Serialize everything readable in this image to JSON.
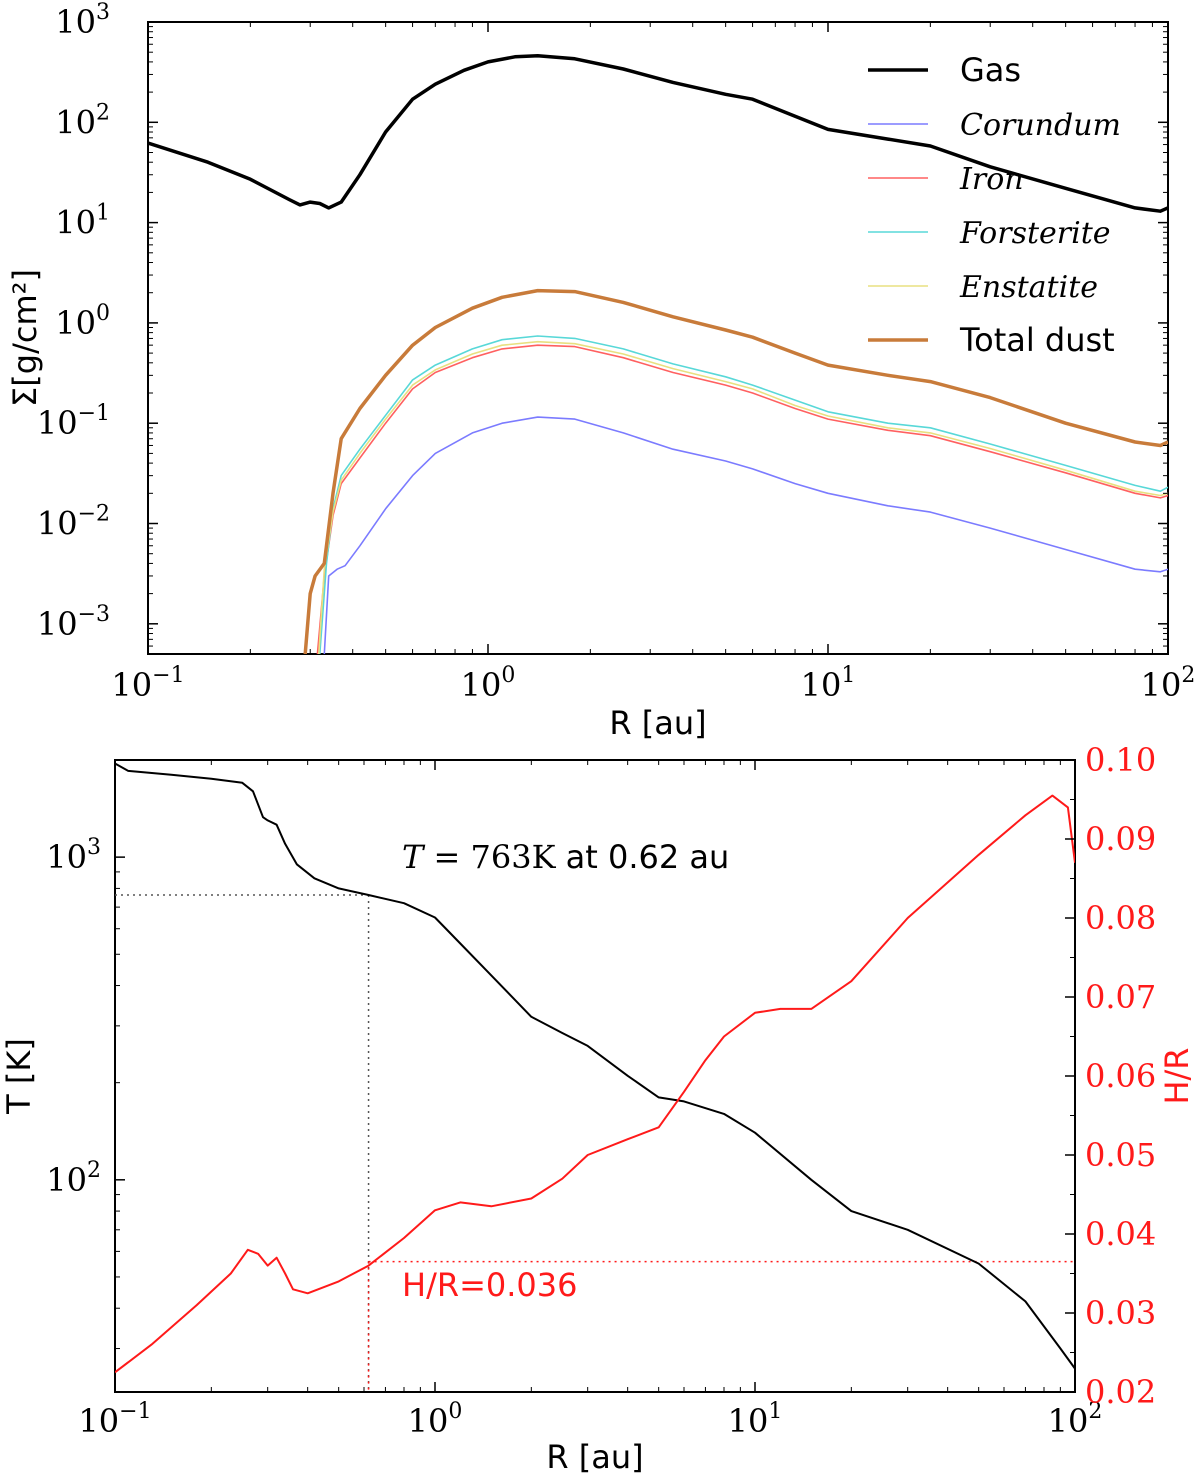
{
  "chart_data": [
    {
      "type": "line",
      "xscale": "log",
      "yscale": "log",
      "xlabel": "R [au]",
      "ylabel": "Σ[g/cm²]",
      "xlim": [
        0.1,
        100
      ],
      "ylim": [
        0.0005,
        1000
      ],
      "x_ticks": [
        {
          "value": 0.1,
          "base": "10",
          "exp": "−1"
        },
        {
          "value": 1,
          "base": "10",
          "exp": "0"
        },
        {
          "value": 10,
          "base": "10",
          "exp": "1"
        },
        {
          "value": 100,
          "base": "10",
          "exp": "2"
        }
      ],
      "y_ticks": [
        {
          "value": 0.001,
          "base": "10",
          "exp": "−3"
        },
        {
          "value": 0.01,
          "base": "10",
          "exp": "−2"
        },
        {
          "value": 0.1,
          "base": "10",
          "exp": "−1"
        },
        {
          "value": 1,
          "base": "10",
          "exp": "0"
        },
        {
          "value": 10,
          "base": "10",
          "exp": "1"
        },
        {
          "value": 100,
          "base": "10",
          "exp": "2"
        },
        {
          "value": 1000,
          "base": "10",
          "exp": "3"
        }
      ],
      "series": [
        {
          "name": "Gas",
          "style": "normal",
          "color": "#000000",
          "width": 3.5,
          "x": [
            0.1,
            0.15,
            0.2,
            0.26,
            0.28,
            0.3,
            0.32,
            0.34,
            0.37,
            0.42,
            0.5,
            0.6,
            0.7,
            0.85,
            1.0,
            1.2,
            1.4,
            1.8,
            2.5,
            3.5,
            5.0,
            6.0,
            8.0,
            10,
            15,
            20,
            30,
            50,
            80,
            95,
            100
          ],
          "y": [
            62,
            40,
            27,
            17,
            15,
            16,
            15.5,
            14,
            16,
            30,
            80,
            170,
            240,
            330,
            400,
            450,
            460,
            430,
            340,
            250,
            190,
            170,
            115,
            85,
            68,
            58,
            36,
            22,
            14,
            13,
            14
          ]
        },
        {
          "name": "Corundum",
          "style": "italic",
          "color": "#7b7bff",
          "width": 1.6,
          "x": [
            0.33,
            0.34,
            0.36,
            0.38,
            0.42,
            0.5,
            0.6,
            0.7,
            0.9,
            1.1,
            1.4,
            1.8,
            2.5,
            3.5,
            5,
            6,
            8,
            10,
            15,
            20,
            30,
            50,
            80,
            95,
            100
          ],
          "y": [
            0.0005,
            0.003,
            0.0035,
            0.0038,
            0.006,
            0.014,
            0.03,
            0.05,
            0.08,
            0.1,
            0.115,
            0.11,
            0.08,
            0.055,
            0.042,
            0.035,
            0.025,
            0.02,
            0.015,
            0.013,
            0.009,
            0.0055,
            0.0035,
            0.0033,
            0.0035
          ]
        },
        {
          "name": "Iron",
          "style": "italic",
          "color": "#ff6060",
          "width": 1.6,
          "x": [
            0.315,
            0.33,
            0.35,
            0.37,
            0.42,
            0.5,
            0.6,
            0.7,
            0.9,
            1.1,
            1.4,
            1.8,
            2.5,
            3.5,
            5,
            6,
            8,
            10,
            15,
            20,
            30,
            50,
            80,
            95,
            100
          ],
          "y": [
            0.0005,
            0.003,
            0.012,
            0.025,
            0.045,
            0.1,
            0.22,
            0.32,
            0.45,
            0.55,
            0.6,
            0.58,
            0.45,
            0.32,
            0.24,
            0.2,
            0.14,
            0.11,
            0.085,
            0.075,
            0.052,
            0.032,
            0.02,
            0.018,
            0.019
          ]
        },
        {
          "name": "Forsterite",
          "style": "italic",
          "color": "#58d8d8",
          "width": 1.6,
          "x": [
            0.32,
            0.335,
            0.35,
            0.37,
            0.42,
            0.5,
            0.6,
            0.7,
            0.9,
            1.1,
            1.4,
            1.8,
            2.5,
            3.5,
            5,
            6,
            8,
            10,
            15,
            20,
            30,
            50,
            80,
            95,
            100
          ],
          "y": [
            0.0005,
            0.004,
            0.014,
            0.03,
            0.055,
            0.12,
            0.27,
            0.38,
            0.55,
            0.68,
            0.74,
            0.7,
            0.55,
            0.39,
            0.29,
            0.24,
            0.17,
            0.13,
            0.1,
            0.09,
            0.062,
            0.038,
            0.024,
            0.021,
            0.023
          ]
        },
        {
          "name": "Enstatite",
          "style": "italic",
          "color": "#e8e080",
          "width": 1.6,
          "x": [
            0.318,
            0.33,
            0.35,
            0.37,
            0.42,
            0.5,
            0.6,
            0.7,
            0.9,
            1.1,
            1.4,
            1.8,
            2.5,
            3.5,
            5,
            6,
            8,
            10,
            15,
            20,
            30,
            50,
            80,
            95,
            100
          ],
          "y": [
            0.0005,
            0.0035,
            0.013,
            0.027,
            0.05,
            0.11,
            0.24,
            0.34,
            0.49,
            0.6,
            0.65,
            0.62,
            0.49,
            0.35,
            0.26,
            0.22,
            0.15,
            0.118,
            0.09,
            0.08,
            0.056,
            0.034,
            0.021,
            0.019,
            0.02
          ]
        },
        {
          "name": "Total dust",
          "style": "normal",
          "color": "#c87b3a",
          "width": 3.5,
          "x": [
            0.29,
            0.3,
            0.31,
            0.33,
            0.35,
            0.37,
            0.42,
            0.5,
            0.6,
            0.7,
            0.9,
            1.1,
            1.4,
            1.8,
            2.5,
            3.5,
            5,
            6,
            8,
            10,
            15,
            20,
            30,
            50,
            80,
            95,
            100
          ],
          "y": [
            0.0005,
            0.002,
            0.003,
            0.004,
            0.02,
            0.07,
            0.14,
            0.3,
            0.6,
            0.9,
            1.4,
            1.8,
            2.1,
            2.05,
            1.6,
            1.15,
            0.85,
            0.72,
            0.5,
            0.38,
            0.3,
            0.26,
            0.18,
            0.1,
            0.065,
            0.06,
            0.065
          ]
        }
      ]
    },
    {
      "type": "line",
      "xscale": "log",
      "yscale": "log",
      "xlabel": "R [au]",
      "ylabel": "T [K]",
      "y2label": "H/R",
      "xlim": [
        0.1,
        100
      ],
      "ylim": [
        22,
        2000
      ],
      "y2lim": [
        0.02,
        0.1
      ],
      "x_ticks": [
        {
          "value": 0.1,
          "base": "10",
          "exp": "−1"
        },
        {
          "value": 1,
          "base": "10",
          "exp": "0"
        },
        {
          "value": 10,
          "base": "10",
          "exp": "1"
        },
        {
          "value": 100,
          "base": "10",
          "exp": "2"
        }
      ],
      "y_ticks": [
        {
          "value": 100,
          "base": "10",
          "exp": "2"
        },
        {
          "value": 1000,
          "base": "10",
          "exp": "3"
        }
      ],
      "y2_ticks": [
        "0.02",
        "0.03",
        "0.04",
        "0.05",
        "0.06",
        "0.07",
        "0.08",
        "0.09",
        "0.10"
      ],
      "series": [
        {
          "name": "T",
          "axis": "left",
          "color": "#000000",
          "width": 2,
          "x": [
            0.1,
            0.11,
            0.15,
            0.2,
            0.25,
            0.27,
            0.29,
            0.3,
            0.32,
            0.34,
            0.37,
            0.42,
            0.5,
            0.62,
            0.8,
            1.0,
            1.2,
            1.5,
            2.0,
            2.5,
            3.0,
            4.0,
            5.0,
            6.0,
            8.0,
            10,
            15,
            20,
            30,
            50,
            70,
            90,
            100
          ],
          "y": [
            1950,
            1850,
            1800,
            1750,
            1700,
            1600,
            1330,
            1300,
            1260,
            1100,
            950,
            860,
            800,
            763,
            720,
            650,
            540,
            430,
            320,
            285,
            260,
            210,
            180,
            175,
            160,
            140,
            100,
            80,
            70,
            55,
            42,
            30,
            26
          ]
        },
        {
          "name": "H/R",
          "axis": "right",
          "color": "#ff1a1a",
          "width": 2,
          "x": [
            0.1,
            0.13,
            0.18,
            0.23,
            0.26,
            0.28,
            0.3,
            0.32,
            0.34,
            0.36,
            0.4,
            0.5,
            0.62,
            0.8,
            1.0,
            1.2,
            1.5,
            2.0,
            2.5,
            3.0,
            4.0,
            5.0,
            6.0,
            7.0,
            8.0,
            10,
            12,
            15,
            20,
            30,
            50,
            70,
            85,
            95,
            100
          ],
          "y": [
            0.0225,
            0.026,
            0.031,
            0.035,
            0.038,
            0.0375,
            0.036,
            0.037,
            0.035,
            0.033,
            0.0325,
            0.034,
            0.036,
            0.0395,
            0.043,
            0.044,
            0.0435,
            0.0445,
            0.047,
            0.05,
            0.052,
            0.0535,
            0.058,
            0.062,
            0.065,
            0.068,
            0.0685,
            0.0685,
            0.072,
            0.08,
            0.088,
            0.093,
            0.0955,
            0.094,
            0.087
          ]
        }
      ],
      "marker": {
        "x": 0.62,
        "t": 763,
        "hr": 0.0365
      },
      "annotations": {
        "temp_italic": "T",
        "temp_mid": " = 763K",
        "temp_rest": " at 0.62 au",
        "hr_label": "H/R=0.036"
      }
    }
  ],
  "legend": {
    "items": [
      {
        "name": "Gas",
        "style": "normal",
        "color": "#000000",
        "width": 3.5
      },
      {
        "name": "Corundum",
        "style": "italic",
        "color": "#7b7bff",
        "width": 1.6
      },
      {
        "name": "Iron",
        "style": "italic",
        "color": "#ff6060",
        "width": 1.6
      },
      {
        "name": "Forsterite",
        "style": "italic",
        "color": "#58d8d8",
        "width": 1.6
      },
      {
        "name": "Enstatite",
        "style": "italic",
        "color": "#e8e080",
        "width": 1.6
      },
      {
        "name": "Total dust",
        "style": "normal",
        "color": "#c87b3a",
        "width": 3.5
      }
    ]
  },
  "colors": {
    "hr_axis": "#ff1a1a",
    "dotted_black": "#555555"
  }
}
